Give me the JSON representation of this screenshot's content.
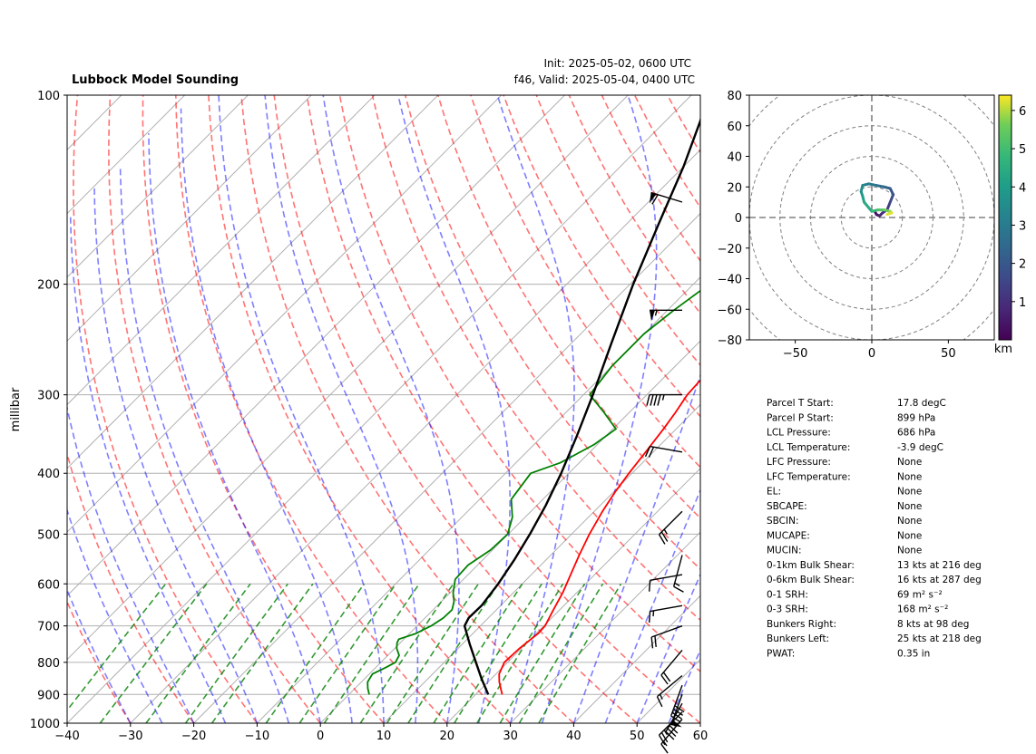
{
  "chart_data": [
    {
      "type": "skew-t",
      "title": "Lubbock Model Sounding",
      "subtitle_init": "Init: 2025-05-02, 0600 UTC",
      "subtitle_valid": "f46, Valid: 2025-05-04, 0400 UTC",
      "ylabel": "millibar",
      "xlabel": "",
      "xlim": [
        -40,
        60
      ],
      "ylim": [
        1000,
        100
      ],
      "y_scale": "log",
      "x_ticks": [
        -40,
        -30,
        -20,
        -10,
        0,
        10,
        20,
        30,
        40,
        50,
        60
      ],
      "y_ticks": [
        1000,
        900,
        800,
        700,
        600,
        500,
        400,
        300,
        200,
        100
      ],
      "grid": true,
      "dry_adiabat_color": "#ff0000",
      "moist_adiabat_color": "#0000ff",
      "mixing_ratio_color": "#008000",
      "series": [
        {
          "color": "#ff0000",
          "points": [
            [
              900,
              24.2
            ],
            [
              880,
              23.0
            ],
            [
              860,
              21.8
            ],
            [
              835,
              20.5
            ],
            [
              800,
              19.5
            ],
            [
              760,
              19.7
            ],
            [
              720,
              20.3
            ],
            [
              700,
              20.2
            ],
            [
              660,
              19.0
            ],
            [
              620,
              17.8
            ],
            [
              580,
              16.2
            ],
            [
              540,
              14.5
            ],
            [
              500,
              12.8
            ],
            [
              460,
              11.3
            ],
            [
              430,
              10.3
            ],
            [
              400,
              9.5
            ],
            [
              370,
              8.8
            ],
            [
              340,
              8.0
            ],
            [
              320,
              7.3
            ],
            [
              300,
              6.4
            ],
            [
              280,
              6.1
            ],
            [
              260,
              6.3
            ],
            [
              240,
              6.8
            ],
            [
              220,
              7.2
            ],
            [
              200,
              8.0
            ],
            [
              180,
              9.3
            ],
            [
              160,
              13.0
            ],
            [
              145,
              16.5
            ],
            [
              130,
              21.0
            ],
            [
              115,
              27.0
            ],
            [
              105,
              32.0
            ],
            [
              100,
              35.0
            ]
          ]
        },
        {
          "color": "#008000",
          "points": [
            [
              900,
              3.2
            ],
            [
              880,
              2.0
            ],
            [
              860,
              1.0
            ],
            [
              835,
              0.5
            ],
            [
              815,
              1.6
            ],
            [
              800,
              2.3
            ],
            [
              780,
              1.8
            ],
            [
              760,
              0.3
            ],
            [
              745,
              -0.5
            ],
            [
              735,
              -0.8
            ],
            [
              720,
              1.0
            ],
            [
              700,
              2.2
            ],
            [
              680,
              2.9
            ],
            [
              660,
              3.0
            ],
            [
              640,
              2.0
            ],
            [
              620,
              0.5
            ],
            [
              590,
              -1.3
            ],
            [
              560,
              -1.5
            ],
            [
              530,
              -0.3
            ],
            [
              500,
              -0.1
            ],
            [
              470,
              -2.0
            ],
            [
              440,
              -5.0
            ],
            [
              400,
              -6.0
            ],
            [
              385,
              -3.0
            ],
            [
              360,
              -0.5
            ],
            [
              340,
              0.5
            ],
            [
              320,
              -4.0
            ],
            [
              300,
              -9.0
            ],
            [
              270,
              -10.0
            ],
            [
              240,
              -10.0
            ],
            [
              220,
              -9.0
            ],
            [
              200,
              -7.5
            ],
            [
              180,
              -5.5
            ],
            [
              160,
              -4.5
            ],
            [
              140,
              -3.0
            ],
            [
              125,
              -1.5
            ],
            [
              110,
              0.5
            ],
            [
              100,
              2.5
            ]
          ]
        },
        {
          "color": "#000000",
          "points": [
            [
              900,
              22.0
            ],
            [
              850,
              18.5
            ],
            [
              800,
              15.0
            ],
            [
              750,
              11.3
            ],
            [
              700,
              7.5
            ],
            [
              680,
              6.9
            ],
            [
              650,
              7.0
            ],
            [
              600,
              6.2
            ],
            [
              550,
              5.0
            ],
            [
              500,
              3.4
            ],
            [
              450,
              1.4
            ],
            [
              400,
              -1.2
            ],
            [
              350,
              -4.5
            ],
            [
              300,
              -8.5
            ],
            [
              250,
              -13.5
            ],
            [
              200,
              -19.5
            ],
            [
              160,
              -25.0
            ],
            [
              130,
              -30.0
            ],
            [
              110,
              -34.5
            ],
            [
              100,
              -37.5
            ]
          ]
        }
      ],
      "wind_barbs": {
        "color": "#000000",
        "units": "kts",
        "barbs": [
          [
            148,
            287,
            60
          ],
          [
            220,
            270,
            55
          ],
          [
            300,
            270,
            45
          ],
          [
            370,
            280,
            20
          ],
          [
            460,
            225,
            25
          ],
          [
            540,
            195,
            15
          ],
          [
            580,
            260,
            10
          ],
          [
            650,
            260,
            15
          ],
          [
            700,
            250,
            20
          ],
          [
            765,
            220,
            20
          ],
          [
            840,
            230,
            15
          ],
          [
            870,
            200,
            40
          ],
          [
            900,
            200,
            50
          ],
          [
            930,
            210,
            35
          ],
          [
            960,
            225,
            25
          ],
          [
            985,
            220,
            15
          ]
        ]
      }
    },
    {
      "type": "hodograph",
      "xlim": [
        -80,
        80
      ],
      "ylim": [
        -80,
        80
      ],
      "x_ticks": [
        -50,
        0,
        50
      ],
      "y_ticks": [
        80,
        60,
        40,
        20,
        0,
        -20,
        -40,
        -60,
        -80
      ],
      "ring_spacing": 20,
      "colormap": "viridis",
      "colorbar_label": "km",
      "colorbar_ticks": [
        1,
        2,
        3,
        4,
        5,
        6
      ],
      "colorbar_range": [
        0,
        6.4
      ],
      "points": [
        [
          2,
          4,
          0.0
        ],
        [
          3,
          2,
          0.3
        ],
        [
          5,
          1,
          0.6
        ],
        [
          7,
          3,
          0.9
        ],
        [
          10,
          5,
          1.2
        ],
        [
          12,
          10,
          1.5
        ],
        [
          14,
          15,
          1.8
        ],
        [
          12,
          19,
          2.1
        ],
        [
          8,
          20,
          2.4
        ],
        [
          3,
          21,
          2.7
        ],
        [
          -2,
          22,
          3.0
        ],
        [
          -6,
          21,
          3.3
        ],
        [
          -7,
          17,
          3.6
        ],
        [
          -6,
          14,
          3.9
        ],
        [
          -5,
          10,
          4.2
        ],
        [
          0,
          4,
          4.6
        ],
        [
          4,
          5,
          5.0
        ],
        [
          8,
          5,
          5.4
        ],
        [
          12,
          4,
          5.8
        ],
        [
          13,
          3,
          6.1
        ],
        [
          10,
          2,
          6.4
        ]
      ]
    }
  ],
  "stats": [
    {
      "label": "Parcel T Start:",
      "value": "17.8 degC"
    },
    {
      "label": "Parcel P Start:",
      "value": "899 hPa"
    },
    {
      "label": "LCL Pressure:",
      "value": "686 hPa"
    },
    {
      "label": "LCL Temperature:",
      "value": "-3.9 degC"
    },
    {
      "label": "LFC Pressure:",
      "value": "None"
    },
    {
      "label": "LFC Temperature:",
      "value": "None"
    },
    {
      "label": "EL:",
      "value": "None"
    },
    {
      "label": "SBCAPE:",
      "value": "None"
    },
    {
      "label": "SBCIN:",
      "value": "None"
    },
    {
      "label": "MUCAPE:",
      "value": "None"
    },
    {
      "label": "MUCIN:",
      "value": "None"
    },
    {
      "label": "0-1km Bulk Shear:",
      "value": "13 kts at 216 deg"
    },
    {
      "label": "0-6km Bulk Shear:",
      "value": "16 kts at 287 deg"
    },
    {
      "label": "0-1 SRH:",
      "value": "69 m² s⁻²"
    },
    {
      "label": "0-3 SRH:",
      "value": "168 m² s⁻²"
    },
    {
      "label": "Bunkers Right:",
      "value": "8 kts at 98 deg"
    },
    {
      "label": "Bunkers Left:",
      "value": "25 kts at 218 deg"
    },
    {
      "label": "PWAT:",
      "value": "0.35 in"
    }
  ]
}
